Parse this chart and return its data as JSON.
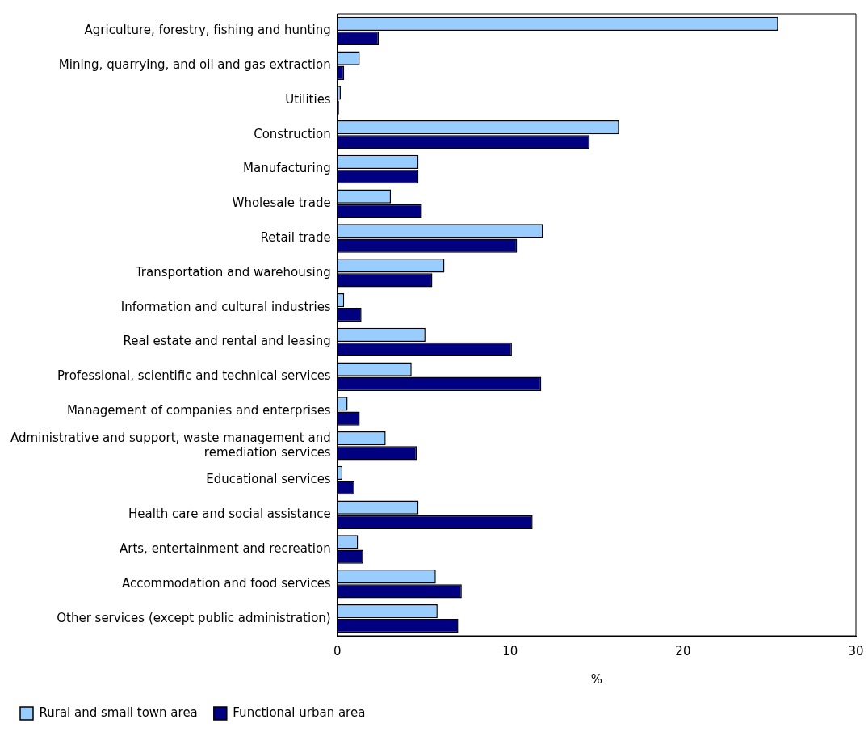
{
  "chart_data": {
    "type": "bar",
    "orientation": "horizontal",
    "xlabel": "%",
    "categories": [
      "Agriculture, forestry, fishing and hunting",
      "Mining, quarrying, and oil and gas extraction",
      "Utilities",
      "Construction",
      "Manufacturing",
      "Wholesale trade",
      "Retail trade",
      "Transportation and warehousing",
      "Information and cultural industries",
      "Real estate and rental and leasing",
      "Professional, scientific and technical services",
      "Management of companies and enterprises",
      "Administrative and support, waste management and remediation services",
      "Educational services",
      "Health care and social assistance",
      "Arts, entertainment and recreation",
      "Accommodation and food services",
      "Other services (except public administration)"
    ],
    "series": [
      {
        "name": "Rural and small town area",
        "color": "#99ccff",
        "values": [
          25.5,
          1.3,
          0.2,
          16.3,
          4.7,
          3.1,
          11.9,
          6.2,
          0.4,
          5.1,
          4.3,
          0.6,
          2.8,
          0.3,
          4.7,
          1.2,
          5.7,
          5.8
        ]
      },
      {
        "name": "Functional urban area",
        "color": "#000080",
        "values": [
          2.4,
          0.4,
          0.1,
          14.6,
          4.7,
          4.9,
          10.4,
          5.5,
          1.4,
          10.1,
          11.8,
          1.3,
          4.6,
          1.0,
          11.3,
          1.5,
          7.2,
          7.0
        ]
      }
    ],
    "xlim": [
      0,
      30
    ],
    "xticks": [
      0,
      10,
      20,
      30
    ],
    "grid": false,
    "legend": "bottom"
  }
}
